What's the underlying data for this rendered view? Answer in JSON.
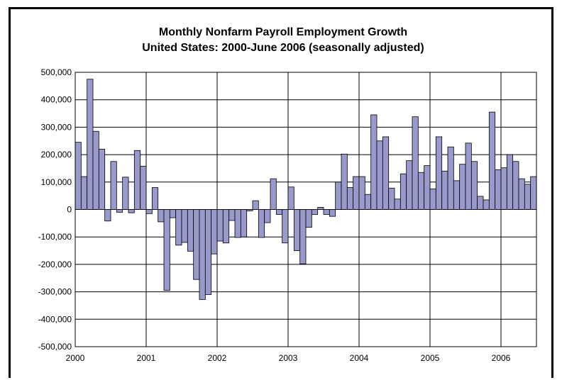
{
  "chart_data": {
    "type": "bar",
    "title": "Monthly Nonfarm Payroll Employment Growth",
    "subtitle": "United States: 2000-June 2006 (seasonally adjusted)",
    "xlabel": "",
    "ylabel": "",
    "ylim": [
      -500000,
      500000
    ],
    "y_ticks": [
      500000,
      400000,
      300000,
      200000,
      100000,
      0,
      -100000,
      -200000,
      -300000,
      -400000,
      -500000
    ],
    "y_tick_labels": [
      "500,000",
      "400,000",
      "300,000",
      "200,000",
      "100,000",
      "0",
      "-100,000",
      "-200,000",
      "-300,000",
      "-400,000",
      "-500,000"
    ],
    "x_tick_labels": [
      "2000",
      "2001",
      "2002",
      "2003",
      "2004",
      "2005",
      "2006"
    ],
    "grid": true,
    "legend": "none",
    "bar_color": "#9999cc",
    "start": "2000-01",
    "end": "2006-06",
    "values": [
      245000,
      120000,
      475000,
      285000,
      220000,
      -42000,
      175000,
      -10000,
      118000,
      -12000,
      215000,
      158000,
      -15000,
      80000,
      -45000,
      -295000,
      -30000,
      -130000,
      -120000,
      -152000,
      -255000,
      -328000,
      -310000,
      -162000,
      -115000,
      -122000,
      -40000,
      -102000,
      -100000,
      -5000,
      32000,
      -102000,
      -48000,
      112000,
      -18000,
      -122000,
      82000,
      -150000,
      -198000,
      -65000,
      -18000,
      8000,
      -18000,
      -25000,
      100000,
      202000,
      80000,
      120000,
      120000,
      55000,
      345000,
      250000,
      265000,
      78000,
      38000,
      130000,
      178000,
      338000,
      135000,
      160000,
      75000,
      265000,
      140000,
      228000,
      105000,
      165000,
      242000,
      175000,
      48000,
      35000,
      355000,
      145000,
      152000,
      200000,
      175000,
      112000,
      92000,
      120000
    ]
  }
}
